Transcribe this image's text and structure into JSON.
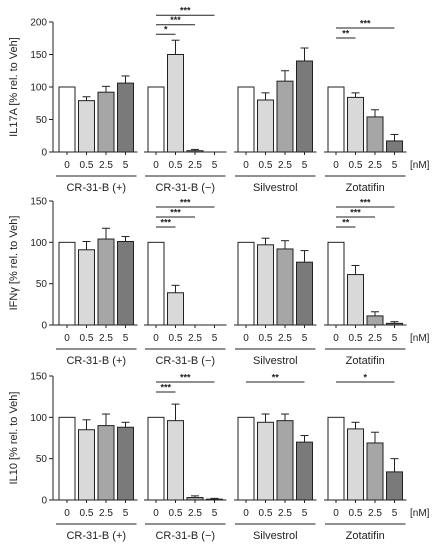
{
  "chart_data": [
    {
      "type": "bar",
      "ylabel": "IL17A [% rel. to Veh]",
      "ylim": [
        0,
        200
      ],
      "yticks": [
        0,
        50,
        100,
        150,
        200
      ],
      "x_unit": "[nM]",
      "dose_labels": [
        "0",
        "0.5",
        "2.5",
        "5"
      ],
      "groups": [
        {
          "name": "CR-31-B (+)",
          "values": [
            100,
            79,
            92,
            106
          ],
          "errors": [
            0,
            6,
            9,
            11
          ]
        },
        {
          "name": "CR-31-B (−)",
          "values": [
            100,
            150,
            2,
            0
          ],
          "errors": [
            0,
            22,
            2,
            0
          ]
        },
        {
          "name": "Silvestrol",
          "values": [
            100,
            80,
            109,
            140
          ],
          "errors": [
            0,
            11,
            16,
            20
          ]
        },
        {
          "name": "Zotatifin",
          "values": [
            100,
            84,
            54,
            17
          ],
          "errors": [
            0,
            7,
            11,
            10
          ]
        }
      ],
      "significance": [
        {
          "group": 1,
          "from": 0,
          "to": 1,
          "label": "*"
        },
        {
          "group": 1,
          "from": 0,
          "to": 2,
          "label": "***"
        },
        {
          "group": 1,
          "from": 0,
          "to": 3,
          "label": "***"
        },
        {
          "group": 3,
          "from": 0,
          "to": 1,
          "label": "**"
        },
        {
          "group": 3,
          "from": 0,
          "to": 3,
          "label": "***"
        }
      ]
    },
    {
      "type": "bar",
      "ylabel": "IFNγ [% rel. to Veh]",
      "ylim": [
        0,
        150
      ],
      "yticks": [
        0,
        50,
        100,
        150
      ],
      "x_unit": "[nM]",
      "dose_labels": [
        "0",
        "0.5",
        "2.5",
        "5"
      ],
      "groups": [
        {
          "name": "CR-31-B (+)",
          "values": [
            100,
            91,
            104,
            101
          ],
          "errors": [
            0,
            10,
            13,
            6
          ]
        },
        {
          "name": "CR-31-B (−)",
          "values": [
            100,
            39,
            0,
            0
          ],
          "errors": [
            0,
            9,
            0,
            0
          ]
        },
        {
          "name": "Silvestrol",
          "values": [
            100,
            97,
            92,
            76
          ],
          "errors": [
            0,
            8,
            10,
            14
          ]
        },
        {
          "name": "Zotatifin",
          "values": [
            100,
            61,
            11,
            2
          ],
          "errors": [
            0,
            11,
            5,
            2
          ]
        }
      ],
      "significance": [
        {
          "group": 1,
          "from": 0,
          "to": 1,
          "label": "***"
        },
        {
          "group": 1,
          "from": 0,
          "to": 2,
          "label": "***"
        },
        {
          "group": 1,
          "from": 0,
          "to": 3,
          "label": "***"
        },
        {
          "group": 3,
          "from": 0,
          "to": 1,
          "label": "**"
        },
        {
          "group": 3,
          "from": 0,
          "to": 2,
          "label": "***"
        },
        {
          "group": 3,
          "from": 0,
          "to": 3,
          "label": "***"
        }
      ]
    },
    {
      "type": "bar",
      "ylabel": "IL10 [% rel. to Veh]",
      "ylim": [
        0,
        150
      ],
      "yticks": [
        0,
        50,
        100,
        150
      ],
      "x_unit": "[nM]",
      "dose_labels": [
        "0",
        "0.5",
        "2.5",
        "5"
      ],
      "groups": [
        {
          "name": "CR-31-B (+)",
          "values": [
            100,
            85,
            90,
            88
          ],
          "errors": [
            0,
            12,
            14,
            6
          ]
        },
        {
          "name": "CR-31-B (−)",
          "values": [
            100,
            96,
            3,
            1
          ],
          "errors": [
            0,
            20,
            2,
            1
          ]
        },
        {
          "name": "Silvestrol",
          "values": [
            100,
            94,
            96,
            70
          ],
          "errors": [
            0,
            10,
            8,
            8
          ]
        },
        {
          "name": "Zotatifin",
          "values": [
            100,
            86,
            69,
            34
          ],
          "errors": [
            0,
            8,
            13,
            16
          ]
        }
      ],
      "significance": [
        {
          "group": 1,
          "from": 0,
          "to": 1,
          "label": "***"
        },
        {
          "group": 1,
          "from": 0,
          "to": 3,
          "label": "***"
        },
        {
          "group": 2,
          "from": 0,
          "to": 3,
          "label": "**"
        },
        {
          "group": 3,
          "from": 0,
          "to": 3,
          "label": "*"
        }
      ]
    }
  ],
  "colors": {
    "dose_fills": [
      "#ffffff",
      "#d9d9d9",
      "#a6a6a6",
      "#7a7a7a"
    ],
    "stroke": "#222222"
  }
}
